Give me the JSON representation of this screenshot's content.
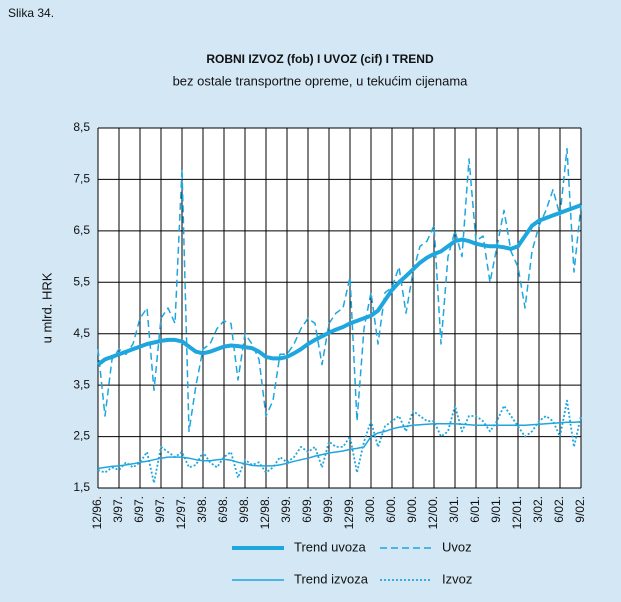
{
  "chart_data": {
    "type": "line",
    "figure_label": "Slika 34.",
    "title": "ROBNI IZVOZ (fob) I UVOZ (cif) I TREND",
    "subtitle": "bez ostale transportne opreme, u tekućim cijenama",
    "ylabel": "u mlrd. HRK",
    "categories": [
      "12/96.",
      null,
      null,
      "3/97.",
      null,
      null,
      "6/97.",
      null,
      null,
      "9/97.",
      null,
      null,
      "12/97.",
      null,
      null,
      "3/98.",
      null,
      null,
      "6/98.",
      null,
      null,
      "9/98.",
      null,
      null,
      "12/98.",
      null,
      null,
      "3/99.",
      null,
      null,
      "6/99.",
      null,
      null,
      "9/99.",
      null,
      null,
      "12/99.",
      null,
      null,
      "3/00.",
      null,
      null,
      "6/00.",
      null,
      null,
      "9/00.",
      null,
      null,
      "12/00.",
      null,
      null,
      "3/01.",
      null,
      null,
      "6/01.",
      null,
      null,
      "9/01.",
      null,
      null,
      "12/01.",
      null,
      null,
      "3/02.",
      null,
      null,
      "6/02.",
      null,
      null,
      "9/02."
    ],
    "ylim": [
      1.5,
      8.5
    ],
    "yticks": [
      {
        "value": 1.5,
        "label": "1,5"
      },
      {
        "value": 2.5,
        "label": "2,5"
      },
      {
        "value": 3.5,
        "label": "3,5"
      },
      {
        "value": 4.5,
        "label": "4,5"
      },
      {
        "value": 5.5,
        "label": "5,5"
      },
      {
        "value": 6.5,
        "label": "6,5"
      },
      {
        "value": 7.5,
        "label": "7,5"
      },
      {
        "value": 8.5,
        "label": "8,5"
      }
    ],
    "grid": true,
    "series": [
      {
        "name": "Trend uvoza",
        "color": "#1ea6de",
        "style": "thick",
        "values": [
          3.9,
          4.0,
          4.05,
          4.1,
          4.15,
          4.2,
          4.25,
          4.3,
          4.33,
          4.36,
          4.38,
          4.38,
          4.35,
          4.25,
          4.15,
          4.12,
          4.15,
          4.2,
          4.25,
          4.27,
          4.26,
          4.24,
          4.22,
          4.15,
          4.05,
          4.02,
          4.02,
          4.05,
          4.12,
          4.2,
          4.3,
          4.38,
          4.45,
          4.52,
          4.58,
          4.63,
          4.7,
          4.75,
          4.8,
          4.85,
          4.95,
          5.15,
          5.35,
          5.5,
          5.62,
          5.75,
          5.88,
          5.98,
          6.05,
          6.1,
          6.2,
          6.3,
          6.33,
          6.3,
          6.25,
          6.22,
          6.2,
          6.2,
          6.18,
          6.15,
          6.2,
          6.4,
          6.6,
          6.7,
          6.75,
          6.8,
          6.85,
          6.9,
          6.95,
          7.0
        ]
      },
      {
        "name": "Uvoz",
        "color": "#1ea6de",
        "style": "dashed",
        "values": [
          4.2,
          2.9,
          4.0,
          4.2,
          4.1,
          4.3,
          4.8,
          5.0,
          3.4,
          4.8,
          5.0,
          4.7,
          7.7,
          2.6,
          3.5,
          4.2,
          4.3,
          4.6,
          4.75,
          4.7,
          3.6,
          4.5,
          4.3,
          4.0,
          2.9,
          3.2,
          4.1,
          4.1,
          4.3,
          4.6,
          4.8,
          4.7,
          3.9,
          4.7,
          4.9,
          5.0,
          5.6,
          2.8,
          4.6,
          5.3,
          4.3,
          5.3,
          5.4,
          5.8,
          4.9,
          5.7,
          6.2,
          6.3,
          6.6,
          4.3,
          6.0,
          6.5,
          6.0,
          7.9,
          6.3,
          6.4,
          5.5,
          6.2,
          6.9,
          6.1,
          5.8,
          5.0,
          6.1,
          6.6,
          6.9,
          7.3,
          6.8,
          8.1,
          5.7,
          7.0
        ]
      },
      {
        "name": "Trend izvoza",
        "color": "#1ea6de",
        "style": "thin",
        "values": [
          1.88,
          1.9,
          1.92,
          1.93,
          1.95,
          1.97,
          2.0,
          2.02,
          2.05,
          2.08,
          2.1,
          2.1,
          2.1,
          2.08,
          2.05,
          2.03,
          2.03,
          2.05,
          2.06,
          2.04,
          2.0,
          1.97,
          1.94,
          1.93,
          1.93,
          1.93,
          1.95,
          1.98,
          2.02,
          2.05,
          2.08,
          2.12,
          2.15,
          2.18,
          2.2,
          2.22,
          2.25,
          2.27,
          2.3,
          2.5,
          2.57,
          2.6,
          2.65,
          2.68,
          2.7,
          2.72,
          2.73,
          2.74,
          2.75,
          2.75,
          2.75,
          2.75,
          2.74,
          2.73,
          2.72,
          2.72,
          2.72,
          2.72,
          2.72,
          2.72,
          2.72,
          2.72,
          2.73,
          2.74,
          2.75,
          2.76,
          2.77,
          2.78,
          2.78,
          2.79
        ]
      },
      {
        "name": "Izvoz",
        "color": "#1ea6de",
        "style": "dotted",
        "values": [
          1.85,
          1.8,
          1.9,
          1.85,
          2.0,
          1.9,
          2.0,
          2.2,
          1.6,
          2.3,
          2.2,
          2.1,
          2.2,
          1.9,
          1.95,
          2.2,
          2.0,
          1.9,
          2.1,
          2.2,
          1.7,
          2.05,
          1.95,
          2.0,
          1.8,
          1.9,
          2.1,
          2.0,
          2.1,
          2.3,
          2.2,
          2.3,
          1.9,
          2.4,
          2.3,
          2.3,
          2.5,
          1.8,
          2.4,
          2.8,
          2.3,
          2.7,
          2.8,
          2.9,
          2.6,
          3.0,
          2.9,
          2.8,
          2.8,
          2.5,
          2.6,
          3.1,
          2.6,
          2.9,
          2.9,
          2.8,
          2.6,
          2.8,
          3.1,
          2.9,
          2.7,
          2.5,
          2.6,
          2.8,
          2.9,
          2.8,
          2.5,
          3.2,
          2.3,
          2.9
        ]
      }
    ]
  }
}
